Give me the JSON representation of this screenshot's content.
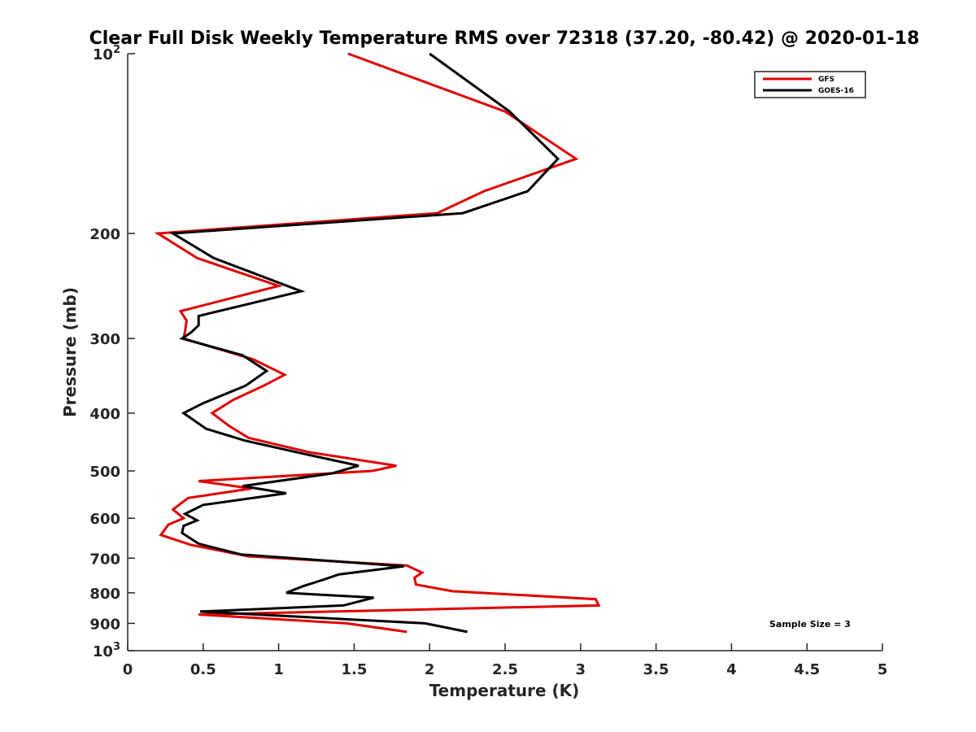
{
  "chart_data": {
    "type": "line",
    "title": "Clear Full Disk Weekly Temperature RMS over 72318 (37.20, -80.42) @ 2020-01-18",
    "xlabel": "Temperature (K)",
    "ylabel": "Pressure (mb)",
    "xlim": [
      0,
      5
    ],
    "ylim": [
      100,
      1000
    ],
    "y_scale": "log",
    "y_reversed": true,
    "grid": false,
    "legend_position": "top-right",
    "x_ticks": [
      {
        "value": 0,
        "label": "0"
      },
      {
        "value": 0.5,
        "label": "0.5"
      },
      {
        "value": 1,
        "label": "1"
      },
      {
        "value": 1.5,
        "label": "1.5"
      },
      {
        "value": 2,
        "label": "2"
      },
      {
        "value": 2.5,
        "label": "2.5"
      },
      {
        "value": 3,
        "label": "3"
      },
      {
        "value": 3.5,
        "label": "3.5"
      },
      {
        "value": 4,
        "label": "4"
      },
      {
        "value": 4.5,
        "label": "4.5"
      },
      {
        "value": 5,
        "label": "5"
      }
    ],
    "y_ticks": [
      {
        "value": 100,
        "base": "10",
        "exp": "2"
      },
      {
        "value": 200,
        "label": "200"
      },
      {
        "value": 300,
        "label": "300"
      },
      {
        "value": 400,
        "label": "400"
      },
      {
        "value": 500,
        "label": "500"
      },
      {
        "value": 600,
        "label": "600"
      },
      {
        "value": 700,
        "label": "700"
      },
      {
        "value": 800,
        "label": "800"
      },
      {
        "value": 900,
        "label": "900"
      },
      {
        "value": 1000,
        "base": "10",
        "exp": "3"
      }
    ],
    "series": [
      {
        "name": "GFS",
        "color": "#e00000",
        "points": [
          [
            1.46,
            100
          ],
          [
            2.5,
            125
          ],
          [
            2.97,
            150
          ],
          [
            2.36,
            170
          ],
          [
            2.05,
            185
          ],
          [
            0.2,
            200
          ],
          [
            0.46,
            220
          ],
          [
            1.0,
            245
          ],
          [
            0.35,
            270
          ],
          [
            0.39,
            280
          ],
          [
            0.38,
            292
          ],
          [
            0.37,
            300
          ],
          [
            0.83,
            325
          ],
          [
            1.04,
            345
          ],
          [
            0.9,
            360
          ],
          [
            0.7,
            380
          ],
          [
            0.56,
            400
          ],
          [
            0.67,
            420
          ],
          [
            0.8,
            440
          ],
          [
            1.2,
            465
          ],
          [
            1.78,
            490
          ],
          [
            1.62,
            500
          ],
          [
            0.47,
            520
          ],
          [
            0.82,
            535
          ],
          [
            0.4,
            555
          ],
          [
            0.3,
            580
          ],
          [
            0.37,
            600
          ],
          [
            0.27,
            615
          ],
          [
            0.22,
            640
          ],
          [
            0.42,
            665
          ],
          [
            0.8,
            695
          ],
          [
            1.85,
            720
          ],
          [
            1.95,
            740
          ],
          [
            1.9,
            755
          ],
          [
            1.91,
            775
          ],
          [
            2.15,
            795
          ],
          [
            3.1,
            820
          ],
          [
            3.12,
            840
          ],
          [
            0.47,
            870
          ],
          [
            1.45,
            900
          ],
          [
            1.85,
            930
          ]
        ]
      },
      {
        "name": "GOES-16",
        "color": "#000000",
        "points": [
          [
            2.0,
            100
          ],
          [
            2.53,
            125
          ],
          [
            2.85,
            150
          ],
          [
            2.65,
            170
          ],
          [
            2.22,
            185
          ],
          [
            0.3,
            200
          ],
          [
            0.57,
            220
          ],
          [
            1.15,
            250
          ],
          [
            0.47,
            275
          ],
          [
            0.47,
            285
          ],
          [
            0.42,
            293
          ],
          [
            0.36,
            300
          ],
          [
            0.76,
            320
          ],
          [
            0.92,
            340
          ],
          [
            0.78,
            360
          ],
          [
            0.5,
            385
          ],
          [
            0.37,
            400
          ],
          [
            0.52,
            425
          ],
          [
            0.78,
            445
          ],
          [
            1.2,
            470
          ],
          [
            1.53,
            490
          ],
          [
            1.35,
            505
          ],
          [
            0.76,
            530
          ],
          [
            1.05,
            545
          ],
          [
            0.5,
            570
          ],
          [
            0.38,
            590
          ],
          [
            0.46,
            605
          ],
          [
            0.37,
            618
          ],
          [
            0.36,
            635
          ],
          [
            0.47,
            662
          ],
          [
            0.75,
            690
          ],
          [
            1.83,
            722
          ],
          [
            1.4,
            745
          ],
          [
            1.3,
            760
          ],
          [
            1.16,
            780
          ],
          [
            1.05,
            800
          ],
          [
            1.63,
            815
          ],
          [
            1.43,
            840
          ],
          [
            0.48,
            860
          ],
          [
            1.97,
            900
          ],
          [
            2.25,
            930
          ]
        ]
      }
    ],
    "annotation": "Sample Size = 3"
  }
}
